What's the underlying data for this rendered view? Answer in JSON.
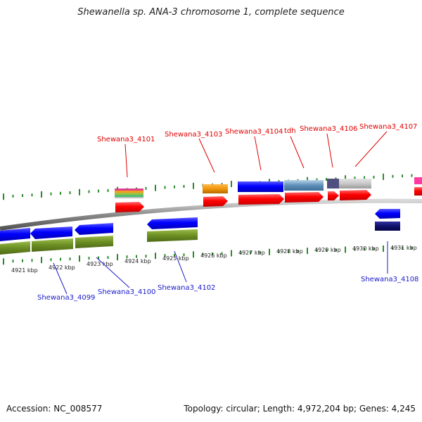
{
  "title": "Shewanella sp. ANA-3 chromosome 1, complete sequence",
  "footer": {
    "accession": "Accession: NC_008577",
    "summary": "Topology: circular; Length: 4,972,204 bp; Genes: 4,245"
  },
  "kbp_labels": [
    "4921 kbp",
    "4922 kbp",
    "4923 kbp",
    "4924 kbp",
    "4925 kbp",
    "4926 kbp",
    "4927 kbp",
    "4928 kbp",
    "4929 kbp",
    "4930 kbp",
    "4931 kbp"
  ],
  "genes_top": [
    "Shewana3_4101",
    "Shewana3_4103",
    "Shewana3_4104",
    "tdh",
    "Shewana3_4106",
    "Shewana3_4107"
  ],
  "genes_bottom": [
    "Shewana3_4099",
    "Shewana3_4100",
    "Shewana3_4102",
    "Shewana3_4108"
  ],
  "colors": {
    "forward_gene": "#ff0000",
    "reverse_gene": "#0000ff",
    "top_label": "#e00000",
    "bottom_label": "#1a1ac8",
    "tick": "#2a8a2a",
    "olive_track": "#6b8e23",
    "orange_track": "#f0960a",
    "backbone": "#888888"
  }
}
